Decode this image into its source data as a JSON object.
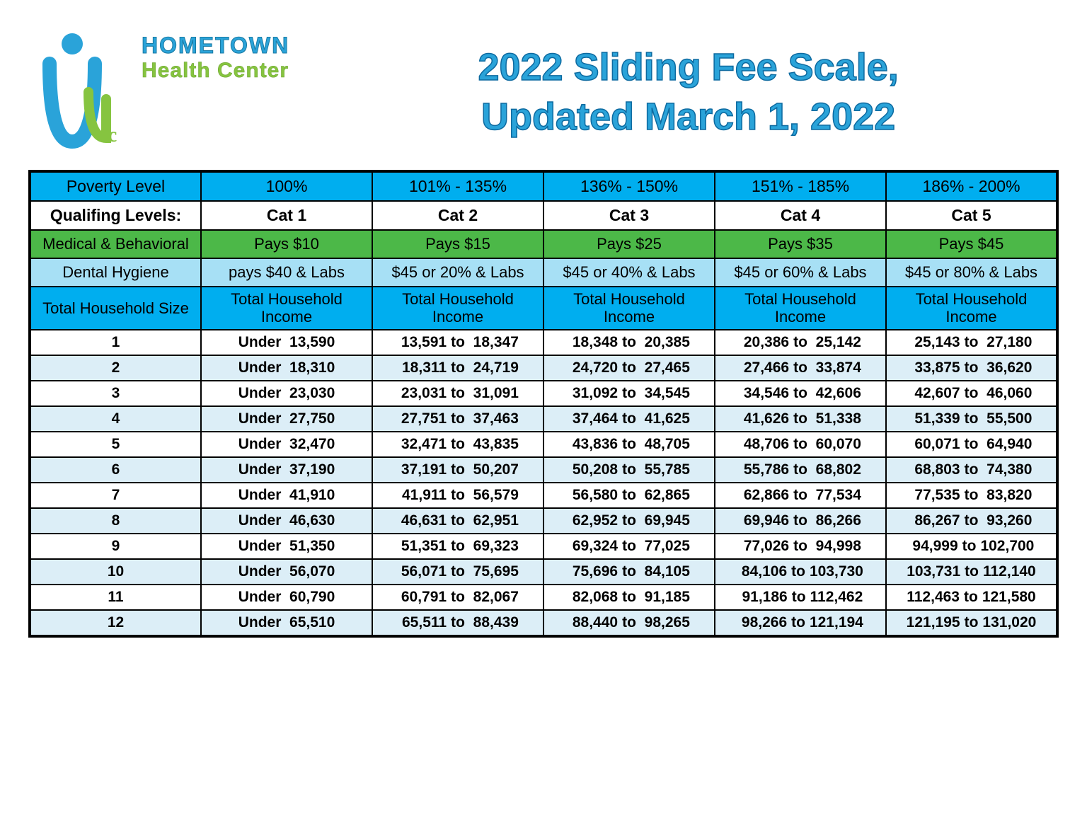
{
  "colors": {
    "brand_blue": "#2aa3d9",
    "brand_blue_stroke": "#0d6aa0",
    "brand_green": "#86c440",
    "header_bg": "#00aeef",
    "medical_bg": "#4cb848",
    "dental_bg": "#a7e0f5",
    "stripe_even": "#dceef7",
    "stripe_odd": "#ffffff",
    "border": "#000000"
  },
  "logo": {
    "line1": "HOMETOWN",
    "line2": "Health Center"
  },
  "title": {
    "line1": "2022 Sliding Fee Scale,",
    "line2": "Updated March 1, 2022"
  },
  "headers": {
    "poverty_label": "Poverty Level",
    "qualifying_label": "Qualifing Levels:",
    "medical_label": "Medical & Behavioral",
    "dental_label": "Dental Hygiene",
    "household_size_label": "Total Household Size",
    "household_income_label": "Total Household Income",
    "poverty": [
      "100%",
      "101% - 135%",
      "136% - 150%",
      "151% - 185%",
      "186% - 200%"
    ],
    "qualifying": [
      "Cat 1",
      "Cat 2",
      "Cat 3",
      "Cat 4",
      "Cat 5"
    ],
    "medical": [
      "Pays $10",
      "Pays $15",
      "Pays $25",
      "Pays $35",
      "Pays $45"
    ],
    "dental": [
      "pays $40 & Labs",
      "$45 or 20% & Labs",
      "$45 or 40% & Labs",
      "$45 or 60% & Labs",
      "$45 or 80% & Labs"
    ]
  },
  "under_label": "Under",
  "to_label": "to",
  "rows": [
    {
      "size": "1",
      "c1": "13,590",
      "c2a": "13,591",
      "c2b": "18,347",
      "c3a": "18,348",
      "c3b": "20,385",
      "c4a": "20,386",
      "c4b": "25,142",
      "c5a": "25,143",
      "c5b": "27,180"
    },
    {
      "size": "2",
      "c1": "18,310",
      "c2a": "18,311",
      "c2b": "24,719",
      "c3a": "24,720",
      "c3b": "27,465",
      "c4a": "27,466",
      "c4b": "33,874",
      "c5a": "33,875",
      "c5b": "36,620"
    },
    {
      "size": "3",
      "c1": "23,030",
      "c2a": "23,031",
      "c2b": "31,091",
      "c3a": "31,092",
      "c3b": "34,545",
      "c4a": "34,546",
      "c4b": "42,606",
      "c5a": "42,607",
      "c5b": "46,060"
    },
    {
      "size": "4",
      "c1": "27,750",
      "c2a": "27,751",
      "c2b": "37,463",
      "c3a": "37,464",
      "c3b": "41,625",
      "c4a": "41,626",
      "c4b": "51,338",
      "c5a": "51,339",
      "c5b": "55,500"
    },
    {
      "size": "5",
      "c1": "32,470",
      "c2a": "32,471",
      "c2b": "43,835",
      "c3a": "43,836",
      "c3b": "48,705",
      "c4a": "48,706",
      "c4b": "60,070",
      "c5a": "60,071",
      "c5b": "64,940"
    },
    {
      "size": "6",
      "c1": "37,190",
      "c2a": "37,191",
      "c2b": "50,207",
      "c3a": "50,208",
      "c3b": "55,785",
      "c4a": "55,786",
      "c4b": "68,802",
      "c5a": "68,803",
      "c5b": "74,380"
    },
    {
      "size": "7",
      "c1": "41,910",
      "c2a": "41,911",
      "c2b": "56,579",
      "c3a": "56,580",
      "c3b": "62,865",
      "c4a": "62,866",
      "c4b": "77,534",
      "c5a": "77,535",
      "c5b": "83,820"
    },
    {
      "size": "8",
      "c1": "46,630",
      "c2a": "46,631",
      "c2b": "62,951",
      "c3a": "62,952",
      "c3b": "69,945",
      "c4a": "69,946",
      "c4b": "86,266",
      "c5a": "86,267",
      "c5b": "93,260"
    },
    {
      "size": "9",
      "c1": "51,350",
      "c2a": "51,351",
      "c2b": "69,323",
      "c3a": "69,324",
      "c3b": "77,025",
      "c4a": "77,026",
      "c4b": "94,998",
      "c5a": "94,999",
      "c5b": "102,700"
    },
    {
      "size": "10",
      "c1": "56,070",
      "c2a": "56,071",
      "c2b": "75,695",
      "c3a": "75,696",
      "c3b": "84,105",
      "c4a": "84,106",
      "c4b": "103,730",
      "c5a": "103,731",
      "c5b": "112,140"
    },
    {
      "size": "11",
      "c1": "60,790",
      "c2a": "60,791",
      "c2b": "82,067",
      "c3a": "82,068",
      "c3b": "91,185",
      "c4a": "91,186",
      "c4b": "112,462",
      "c5a": "112,463",
      "c5b": "121,580"
    },
    {
      "size": "12",
      "c1": "65,510",
      "c2a": "65,511",
      "c2b": "88,439",
      "c3a": "88,440",
      "c3b": "98,265",
      "c4a": "98,266",
      "c4b": "121,194",
      "c5a": "121,195",
      "c5b": "131,020"
    }
  ]
}
